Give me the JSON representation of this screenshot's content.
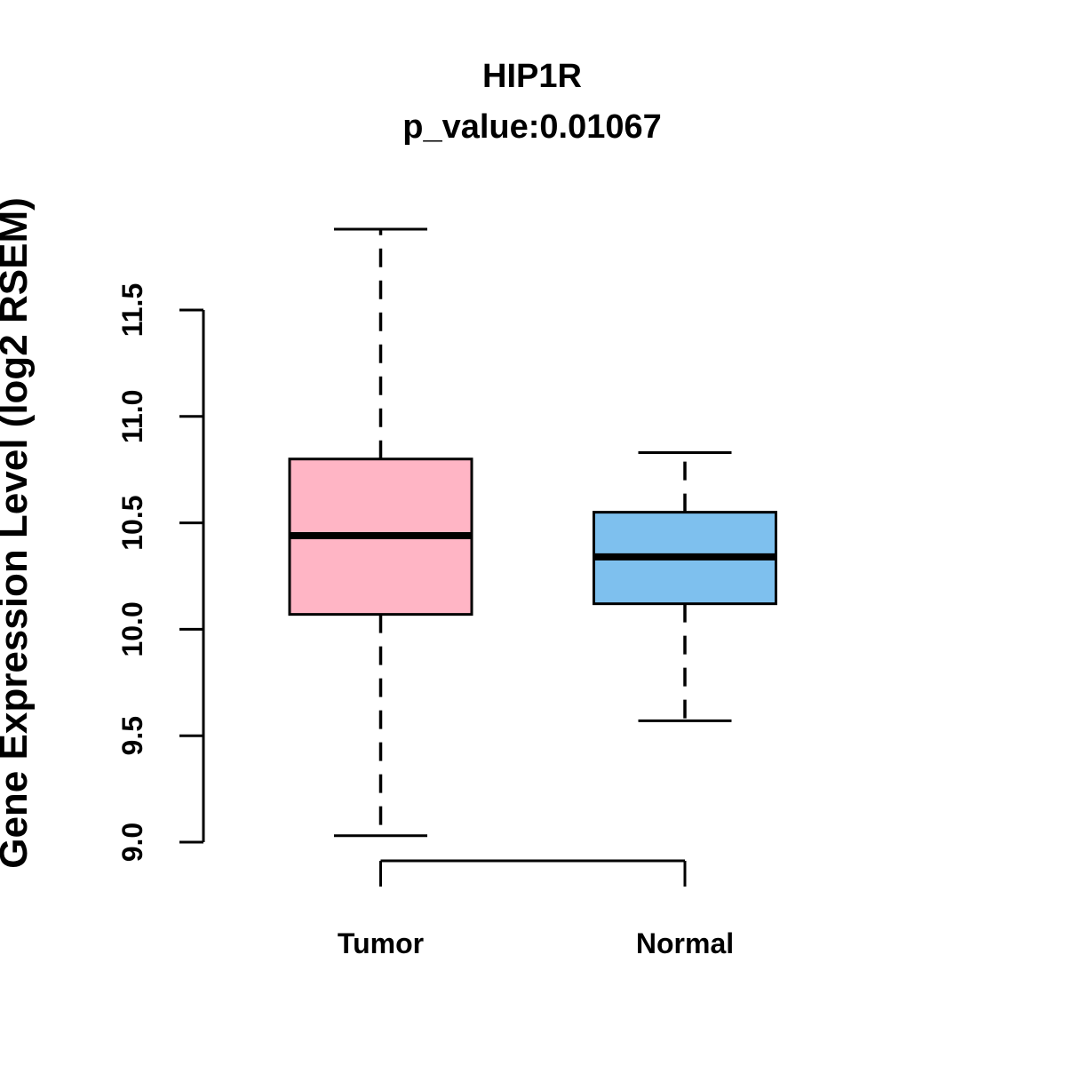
{
  "title": "HIP1R",
  "subtitle": "p_value:0.01067",
  "chart_data": {
    "type": "boxplot",
    "title": "HIP1R",
    "subtitle": "p_value:0.01067",
    "gene": "HIP1R",
    "p_value": 0.01067,
    "ylabel": "Gene Expression Level (log2 RSEM)",
    "xlabel": "",
    "ylim": [
      9.0,
      11.5
    ],
    "yticks": [
      9.0,
      9.5,
      10.0,
      10.5,
      11.0,
      11.5
    ],
    "grid": false,
    "legend": "none",
    "categories": [
      "Tumor",
      "Normal"
    ],
    "series": [
      {
        "name": "Tumor",
        "color": "#FFB5C5",
        "min": 9.03,
        "q1": 10.07,
        "median": 10.44,
        "q3": 10.8,
        "max": 11.88
      },
      {
        "name": "Normal",
        "color": "#7EC0EE",
        "min": 9.57,
        "q1": 10.12,
        "median": 10.34,
        "q3": 10.55,
        "max": 10.83
      }
    ],
    "colors": {
      "tumor_box": "#FFB5C5",
      "normal_box": "#7EC0EE",
      "line": "#000000",
      "background": "#FFFFFF"
    }
  }
}
